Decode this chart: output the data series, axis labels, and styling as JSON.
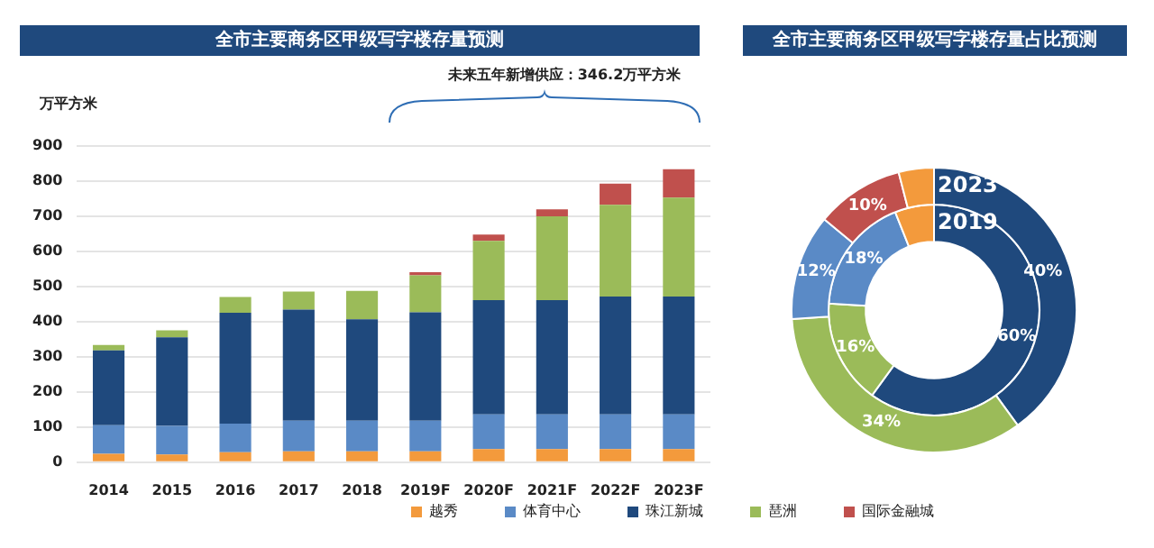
{
  "chart_data": [
    {
      "type": "bar",
      "title": "全市主要商务区甲级写字楼存量预测",
      "ylabel": "万平方米",
      "annotations": [
        "未来五年新增供应：346.2万平方米"
      ],
      "categories": [
        "2014",
        "2015",
        "2016",
        "2017",
        "2018",
        "2019F",
        "2020F",
        "2021F",
        "2022F",
        "2023F"
      ],
      "stacked": true,
      "ylim": [
        0,
        900
      ],
      "yticks": [
        0,
        100,
        200,
        300,
        400,
        500,
        600,
        700,
        800,
        900
      ],
      "grid": "y",
      "legend": "bottom",
      "series": [
        {
          "name": "越秀",
          "color": "#f39a3c",
          "values": [
            24,
            22,
            28,
            31,
            31,
            31,
            37,
            37,
            37,
            37
          ]
        },
        {
          "name": "体育中心",
          "color": "#5a8ac6",
          "values": [
            81,
            81,
            82,
            87,
            87,
            87,
            99,
            99,
            99,
            99
          ]
        },
        {
          "name": "珠江新城",
          "color": "#1f497d",
          "values": [
            213,
            252,
            315,
            316,
            288,
            308,
            325,
            325,
            335,
            335
          ]
        },
        {
          "name": "琶洲",
          "color": "#9bbb59",
          "values": [
            15,
            20,
            45,
            51,
            81,
            105,
            168,
            238,
            261,
            281
          ]
        },
        {
          "name": "国际金融城",
          "color": "#c0504d",
          "values": [
            0,
            0,
            0,
            0,
            0,
            9,
            18,
            20,
            60,
            81
          ]
        }
      ]
    },
    {
      "type": "donut",
      "title": "全市主要商务区甲级写字楼存量占比预测",
      "categories": [
        null,
        null,
        null,
        null,
        null
      ],
      "colors": [
        "#1f497d",
        "#9bbb59",
        "#5a8ac6",
        "#c0504d",
        "#f39a3c"
      ],
      "series": [
        {
          "name": "2023",
          "values": [
            40,
            34,
            12,
            10,
            4
          ],
          "value_labels": [
            "40%",
            "34%",
            "12%",
            "10%",
            null
          ]
        },
        {
          "name": "2019",
          "values": [
            60,
            16,
            18,
            0,
            6
          ],
          "value_labels": [
            "60%",
            "16%",
            "18%",
            null,
            null
          ]
        }
      ]
    }
  ]
}
